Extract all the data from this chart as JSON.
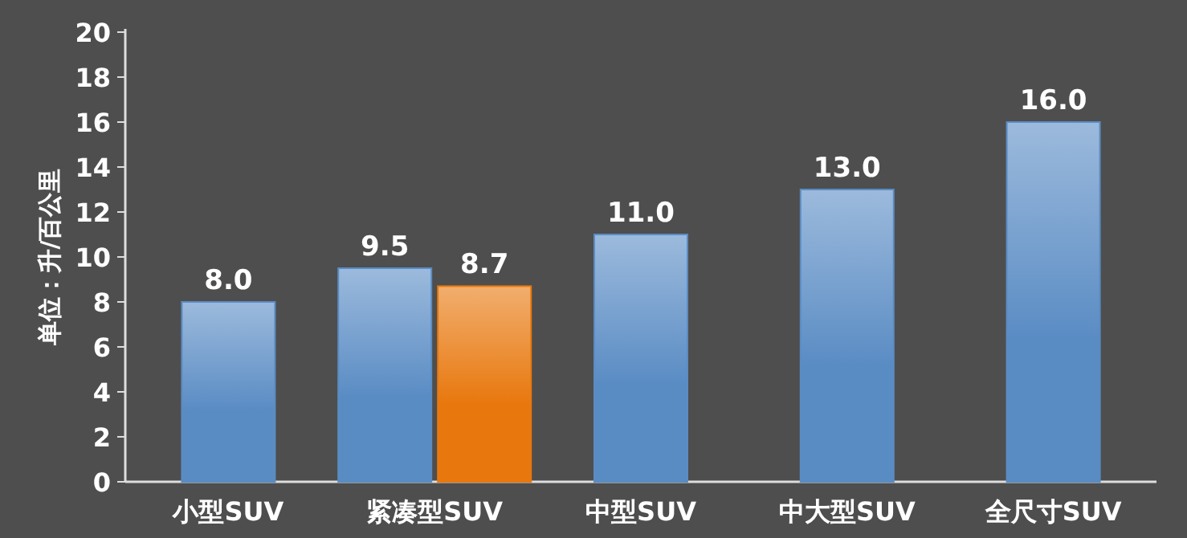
{
  "chart_data": {
    "type": "bar",
    "ylabel": "单位：升/百公里",
    "categories": [
      "小型SUV",
      "紧凑型SUV",
      "中型SUV",
      "中大型SUV",
      "全尺寸SUV"
    ],
    "series": [
      {
        "color": "#5a8cc4",
        "values": [
          8.0,
          9.5,
          11.0,
          13.0,
          16.0
        ],
        "value_labels": [
          "8.0",
          "9.5",
          "11.0",
          "13.0",
          "16.0"
        ]
      },
      {
        "color": "#e8780e",
        "values": [
          null,
          8.7,
          null,
          null,
          null
        ],
        "value_labels": [
          null,
          "8.7",
          null,
          null,
          null
        ]
      }
    ],
    "ylim": [
      0,
      20
    ],
    "yticks": [
      0,
      2,
      4,
      6,
      8,
      10,
      12,
      14,
      16,
      18,
      20
    ],
    "grid": false
  }
}
